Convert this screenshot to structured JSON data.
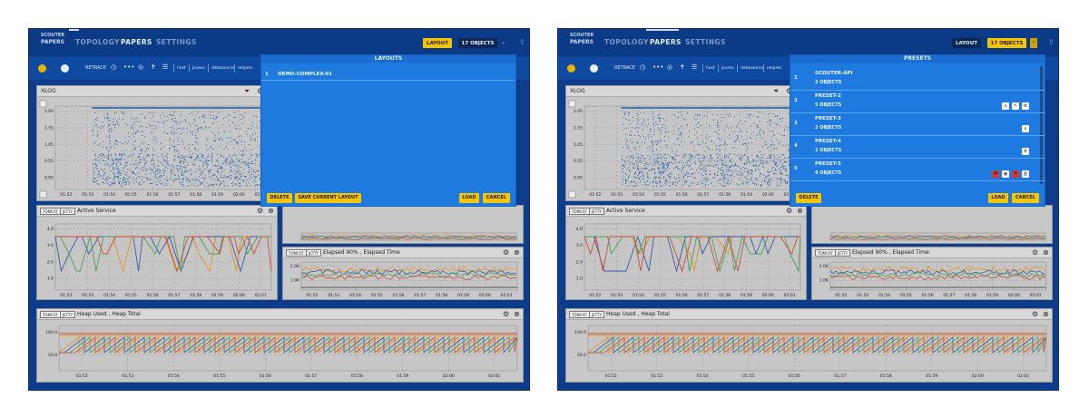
{
  "brand": {
    "logo_top": "SCOUTER",
    "logo_bottom": "PAPERS"
  },
  "nav": {
    "topology": "TOPOLOGY",
    "papers": "PAPERS",
    "settings": "SETTINGS"
  },
  "header": {
    "layout_btn": "LAYOUT",
    "objects_btn": "17 OBJECTS"
  },
  "toolbar": {
    "retrace": "RETRACE",
    "dots": "•••",
    "pills": [
      "host",
      "jsvess",
      "datasource",
      "resprec"
    ]
  },
  "xlog": {
    "title": "XLOG",
    "y_ticks": [
      "2.05",
      "1.55",
      "1.05",
      "0.55",
      "0.05"
    ],
    "x_ticks": [
      "01:52",
      "01:53",
      "01:54",
      "01:55",
      "01:56",
      "01:57",
      "01:58",
      "01:59",
      "02:00",
      "02:01"
    ]
  },
  "active_service": {
    "tags": [
      "TOMCAT",
      "JETTY"
    ],
    "title": "Active Service",
    "y_ticks": [
      "4.0",
      "3.0",
      "2.0",
      "1.0"
    ],
    "x_ticks": [
      "01:52",
      "01:53",
      "01:54",
      "01:55",
      "01:56",
      "01:57",
      "01:58",
      "01:59",
      "02:00",
      "02:01"
    ]
  },
  "elapsed": {
    "tags": [
      "TOMCAT",
      "JETTY"
    ],
    "title": "Elapsed 90% , Elapsed Time",
    "y_ticks": [
      "2.0K",
      "1.0K"
    ],
    "x_ticks": [
      "01:52",
      "01:53",
      "01:54",
      "01:55",
      "01:56",
      "01:57",
      "01:58",
      "01:59",
      "02:00",
      "02:01"
    ]
  },
  "heap": {
    "tags": [
      "TOMCAT",
      "JETTY"
    ],
    "title": "Heap Used , Heap Total",
    "y_ticks": [
      "100.0",
      "50.0"
    ],
    "x_ticks": [
      "01:52",
      "01:53",
      "01:54",
      "01:55",
      "01:56",
      "01:57",
      "01:58",
      "01:59",
      "02:00",
      "02:01"
    ]
  },
  "layouts_modal": {
    "title": "LAYOUTS",
    "items": [
      {
        "num": "1",
        "name": "DEMO-COMPLEX-01"
      }
    ],
    "delete": "DELETE",
    "save": "SAVE CURRENT LAYOUT",
    "load": "LOAD",
    "cancel": "CANCEL"
  },
  "presets_modal": {
    "title": "PRESETS",
    "items": [
      {
        "num": "1",
        "name": "SCOUTER-API",
        "sub": "2 OBJECTS"
      },
      {
        "num": "2",
        "name": "PRESET-2",
        "sub": "5 OBJECTS"
      },
      {
        "num": "3",
        "name": "PRESET-3",
        "sub": "2 OBJECTS"
      },
      {
        "num": "4",
        "name": "PRESET-4",
        "sub": "1 OBJECTS"
      },
      {
        "num": "5",
        "name": "PRESET-5",
        "sub": "4 OBJECTS"
      }
    ],
    "delete": "DELETE",
    "load": "LOAD",
    "cancel": "CANCEL"
  },
  "colors": {
    "bg": "#0d3d8a",
    "accent": "#f6c400",
    "modal": "#1f7ae0",
    "scatter": "#1f5ea8",
    "series": [
      "#e69320",
      "#3b5aa6",
      "#4ba05a",
      "#c8503b"
    ]
  }
}
